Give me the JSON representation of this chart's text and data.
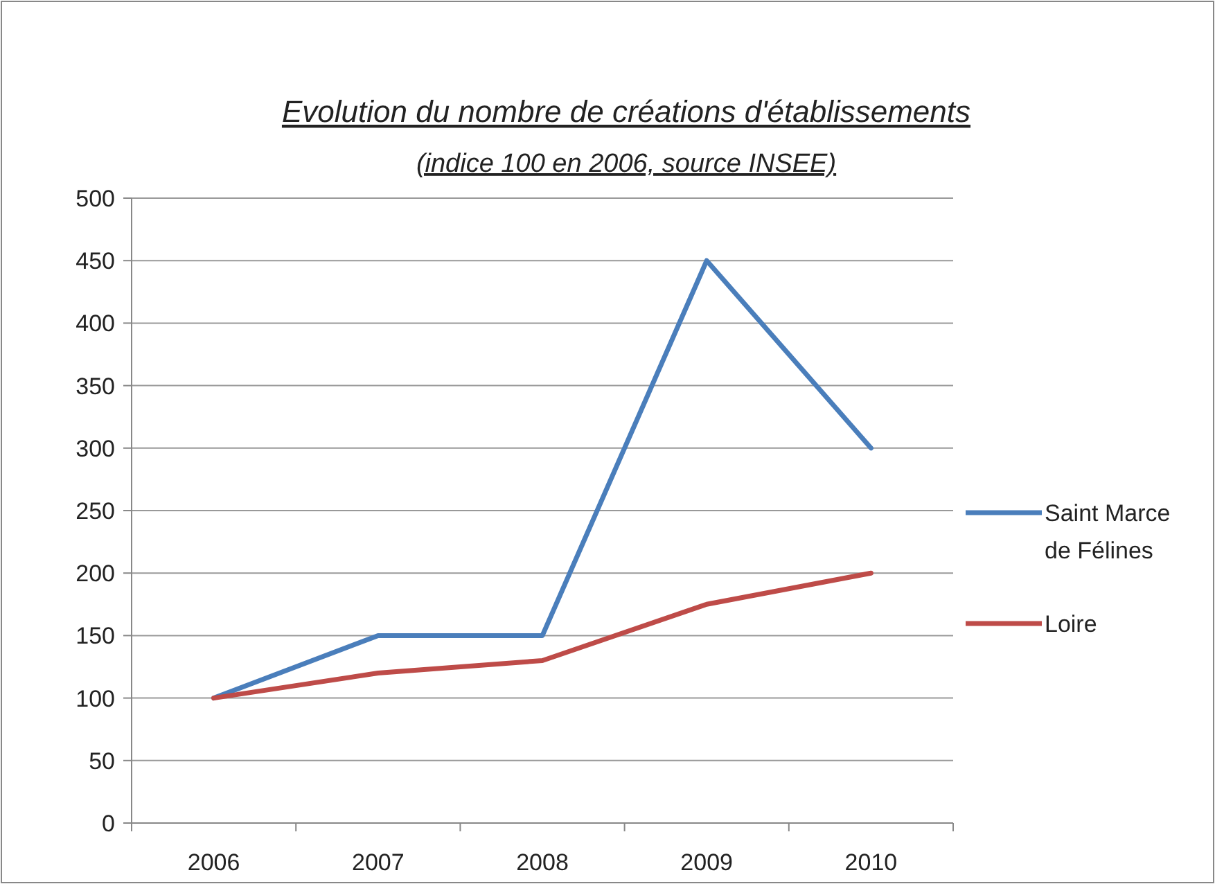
{
  "chart_data": {
    "type": "line",
    "title": "Evolution du nombre de créations d'établissements",
    "subtitle": "(indice 100 en 2006, source INSEE)",
    "categories": [
      "2006",
      "2007",
      "2008",
      "2009",
      "2010"
    ],
    "series": [
      {
        "name": "Saint Marce de Félines",
        "color": "#4a7ebb",
        "values": [
          100,
          150,
          150,
          450,
          300
        ]
      },
      {
        "name": "Loire",
        "color": "#be4b48",
        "values": [
          100,
          120,
          130,
          175,
          200
        ]
      }
    ],
    "ylim": [
      0,
      500
    ],
    "yticks": [
      0,
      50,
      100,
      150,
      200,
      250,
      300,
      350,
      400,
      450,
      500
    ],
    "grid": "y",
    "legend": "right",
    "marker": "none",
    "line_style": "solid"
  }
}
